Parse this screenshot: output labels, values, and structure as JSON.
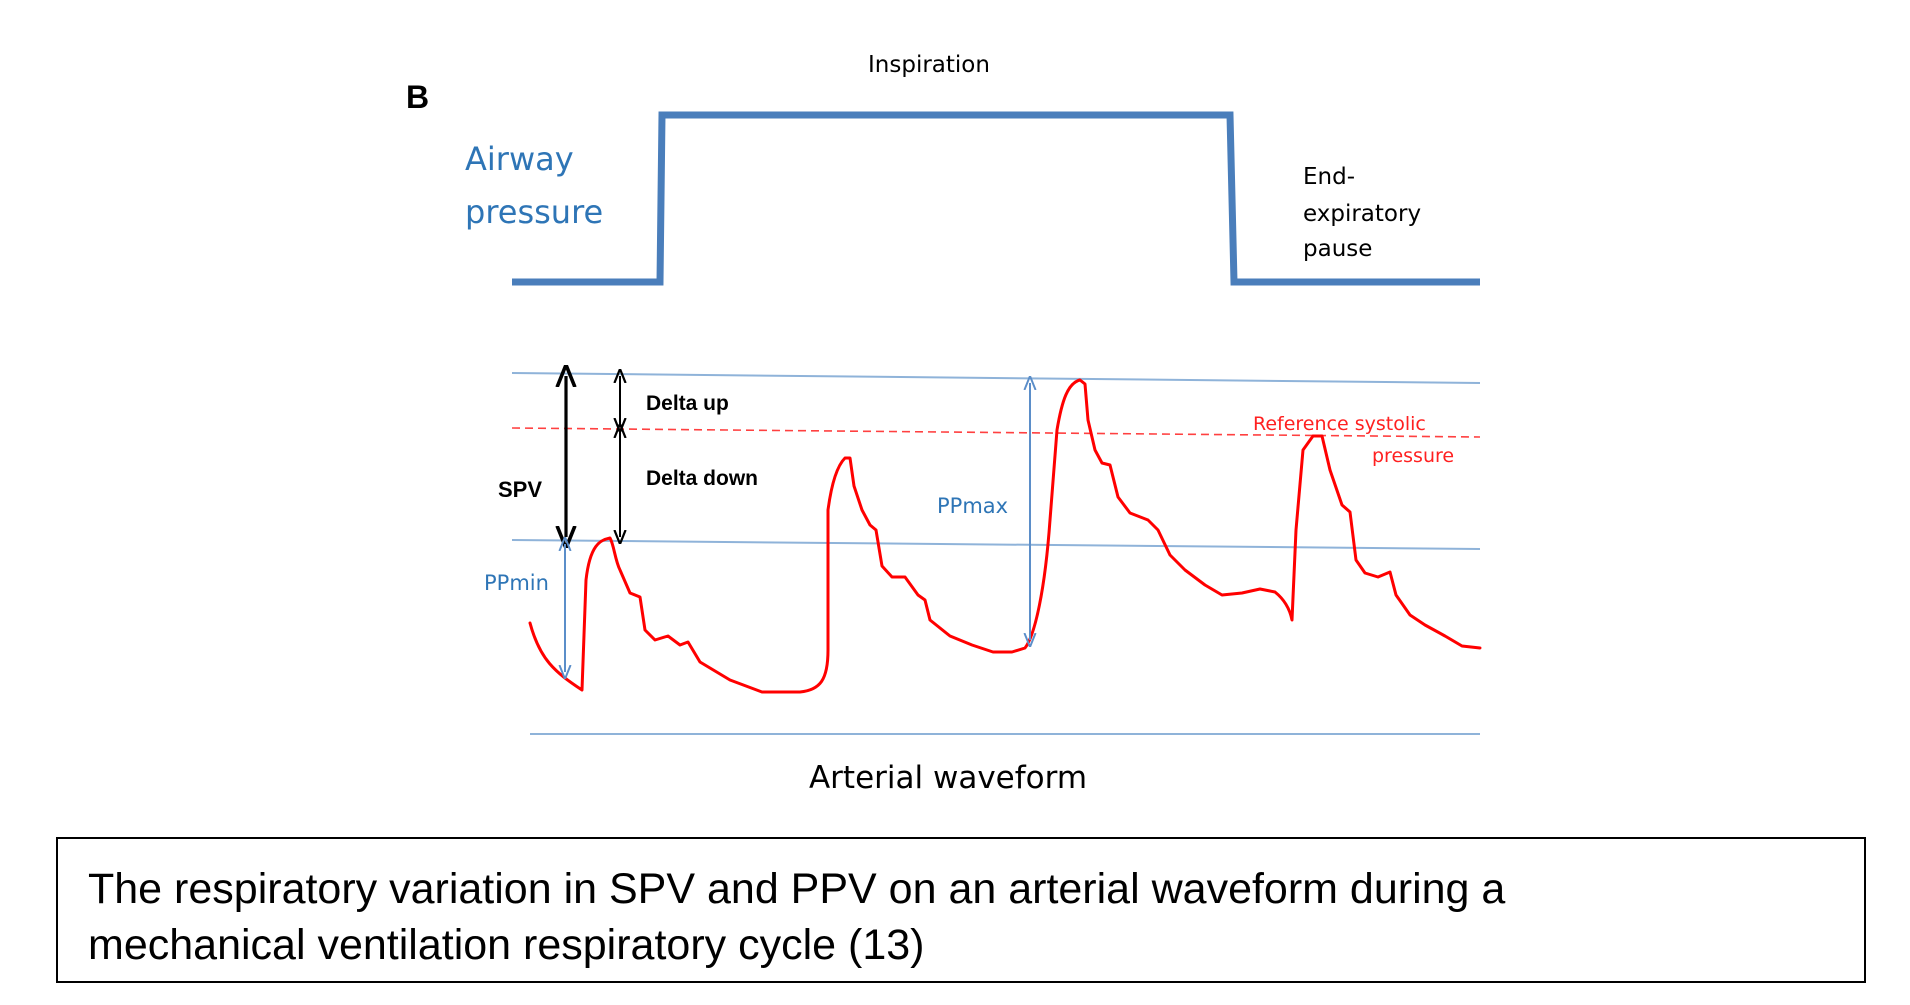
{
  "panel_label": "B",
  "airway": {
    "title_line1": "Airway",
    "title_line2": "pressure",
    "inspiration_label": "Inspiration",
    "end_exp_line1": "End-",
    "end_exp_line2": "expiratory",
    "end_exp_line3": "pause"
  },
  "arterial": {
    "title": "Arterial waveform",
    "spv_label": "SPV",
    "delta_up_label": "Delta up",
    "delta_down_label": "Delta down",
    "ppmin_label": "PPmin",
    "ppmax_label": "PPmax",
    "reference_line1": "Reference systolic",
    "reference_line2": "pressure"
  },
  "caption": {
    "line1": "The respiratory variation in SPV and PPV on an arterial waveform during a",
    "line2": "mechanical ventilation respiratory cycle (13)"
  },
  "colors": {
    "blue_label": "#2e75b6",
    "airway_line": "#4a7ebb",
    "thin_line": "#8fb3d9",
    "red": "#ff0000",
    "black": "#000000"
  }
}
